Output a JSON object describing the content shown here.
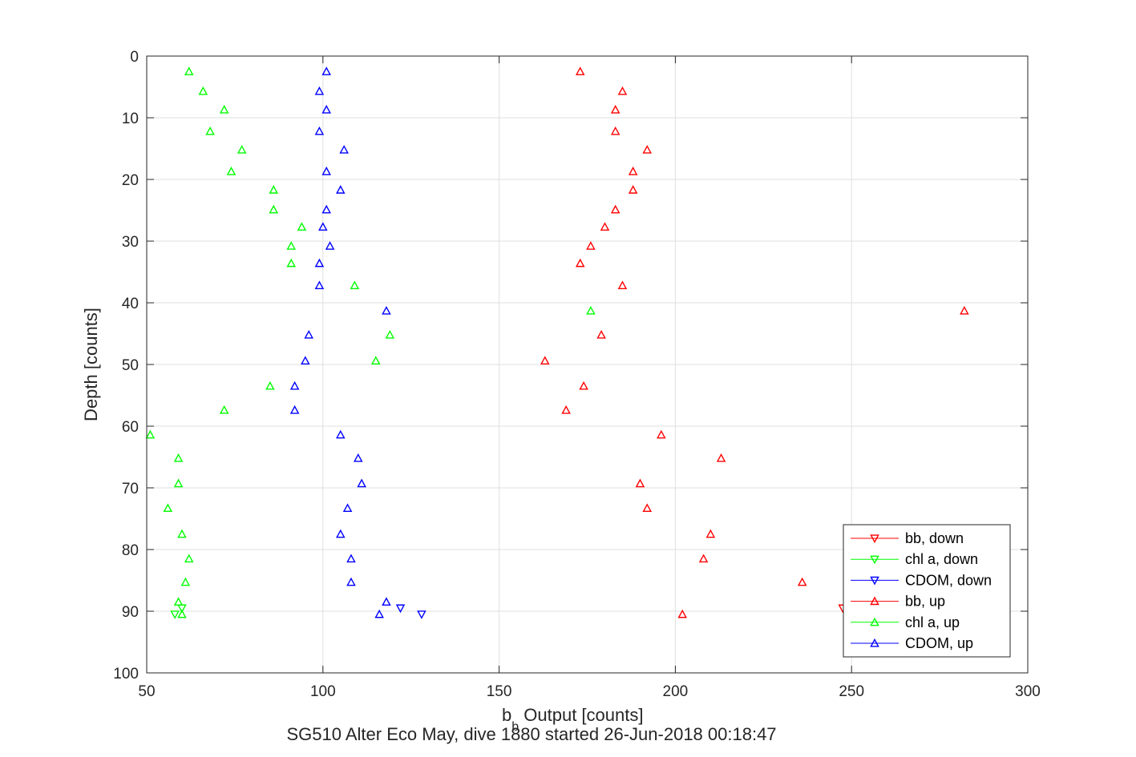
{
  "chart_data": {
    "type": "scatter",
    "title": "SG510 Alter Eco May, dive 1880 started 26-Jun-2018 00:18:47",
    "xlabel": {
      "main": "b",
      "sub": "b",
      "rest": " Output [counts]"
    },
    "ylabel": "Depth [counts]",
    "xlim": [
      50,
      300
    ],
    "ylim": [
      0,
      100
    ],
    "y_reversed": true,
    "grid": true,
    "legend_position": "bottom-right",
    "x_ticks": [
      "50",
      "100",
      "150",
      "200",
      "250",
      "300"
    ],
    "y_ticks": [
      "0",
      "10",
      "20",
      "30",
      "40",
      "50",
      "60",
      "70",
      "80",
      "90",
      "100"
    ],
    "series": [
      {
        "name": "bb, down",
        "color": "#ff0000",
        "marker": "down",
        "points": [
          [
            247.5,
            89.5
          ]
        ]
      },
      {
        "name": "chl a, down",
        "color": "#00ff00",
        "marker": "down",
        "points": [
          [
            58,
            90.5
          ],
          [
            60,
            89.5
          ]
        ]
      },
      {
        "name": "CDOM, down",
        "color": "#0000ff",
        "marker": "down",
        "points": [
          [
            128,
            90.5
          ],
          [
            122,
            89.5
          ]
        ]
      },
      {
        "name": "bb, up",
        "color": "#ff0000",
        "marker": "up",
        "points": [
          [
            173,
            2.5
          ],
          [
            185,
            5.7
          ],
          [
            183,
            8.7
          ],
          [
            183,
            12.2
          ],
          [
            192,
            15.2
          ],
          [
            188,
            18.7
          ],
          [
            188,
            21.7
          ],
          [
            183,
            24.9
          ],
          [
            180,
            27.7
          ],
          [
            176,
            30.8
          ],
          [
            173,
            33.6
          ],
          [
            185,
            37.2
          ],
          [
            282,
            41.3
          ],
          [
            179,
            45.2
          ],
          [
            163,
            49.4
          ],
          [
            174,
            53.5
          ],
          [
            169,
            57.4
          ],
          [
            196,
            61.4
          ],
          [
            213,
            65.2
          ],
          [
            190,
            69.3
          ],
          [
            192,
            73.3
          ],
          [
            210,
            77.5
          ],
          [
            208,
            81.5
          ],
          [
            236,
            85.3
          ],
          [
            202,
            90.5
          ]
        ]
      },
      {
        "name": "chl a, up",
        "color": "#00ff00",
        "marker": "up",
        "points": [
          [
            62,
            2.5
          ],
          [
            66,
            5.7
          ],
          [
            72,
            8.7
          ],
          [
            68,
            12.2
          ],
          [
            77,
            15.2
          ],
          [
            74,
            18.7
          ],
          [
            86,
            21.7
          ],
          [
            86,
            24.9
          ],
          [
            94,
            27.7
          ],
          [
            91,
            30.8
          ],
          [
            91,
            33.6
          ],
          [
            109,
            37.2
          ],
          [
            176,
            41.3
          ],
          [
            119,
            45.2
          ],
          [
            115,
            49.4
          ],
          [
            85,
            53.5
          ],
          [
            72,
            57.4
          ],
          [
            51,
            61.4
          ],
          [
            59,
            65.2
          ],
          [
            59,
            69.3
          ],
          [
            56,
            73.3
          ],
          [
            60,
            77.5
          ],
          [
            62,
            81.5
          ],
          [
            61,
            85.3
          ],
          [
            59,
            88.5
          ],
          [
            60,
            90.5
          ]
        ]
      },
      {
        "name": "CDOM, up",
        "color": "#0000ff",
        "marker": "up",
        "points": [
          [
            101,
            2.5
          ],
          [
            99,
            5.7
          ],
          [
            101,
            8.7
          ],
          [
            99,
            12.2
          ],
          [
            106,
            15.2
          ],
          [
            101,
            18.7
          ],
          [
            105,
            21.7
          ],
          [
            101,
            24.9
          ],
          [
            100,
            27.7
          ],
          [
            102,
            30.8
          ],
          [
            99,
            33.6
          ],
          [
            99,
            37.2
          ],
          [
            118,
            41.3
          ],
          [
            96,
            45.2
          ],
          [
            95,
            49.4
          ],
          [
            92,
            53.5
          ],
          [
            92,
            57.4
          ],
          [
            105,
            61.4
          ],
          [
            110,
            65.2
          ],
          [
            111,
            69.3
          ],
          [
            107,
            73.3
          ],
          [
            105,
            77.5
          ],
          [
            108,
            81.5
          ],
          [
            108,
            85.3
          ],
          [
            118,
            88.5
          ],
          [
            116,
            90.5
          ]
        ]
      }
    ]
  }
}
